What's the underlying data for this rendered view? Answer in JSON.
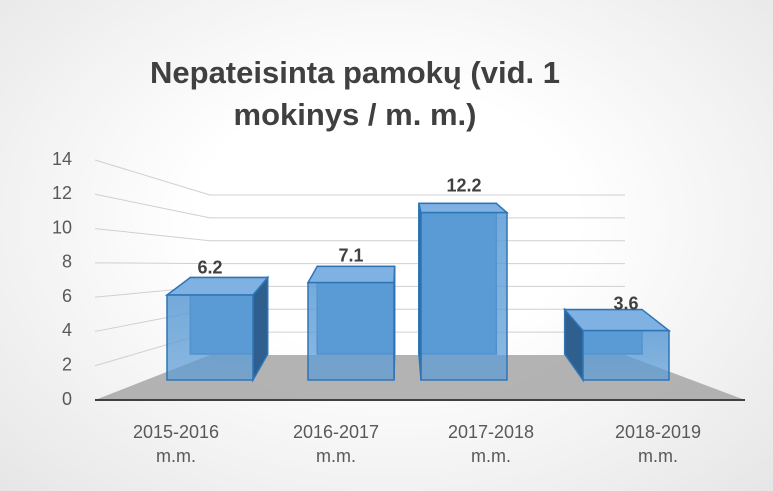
{
  "chart_data": {
    "type": "bar3d",
    "title": "Nepateisinta pamokų (vid. 1 mokinys / m. m.)",
    "categories": [
      "2015-2016 m.m.",
      "2016-2017 m.m.",
      "2017-2018 m.m.",
      "2018-2019 m.m."
    ],
    "values": [
      6.2,
      7.1,
      12.2,
      3.6
    ],
    "color": "#5b9bd5",
    "ylim": [
      0,
      14
    ],
    "yticks": [
      0,
      2,
      4,
      6,
      8,
      10,
      12,
      14
    ],
    "grid": true
  }
}
